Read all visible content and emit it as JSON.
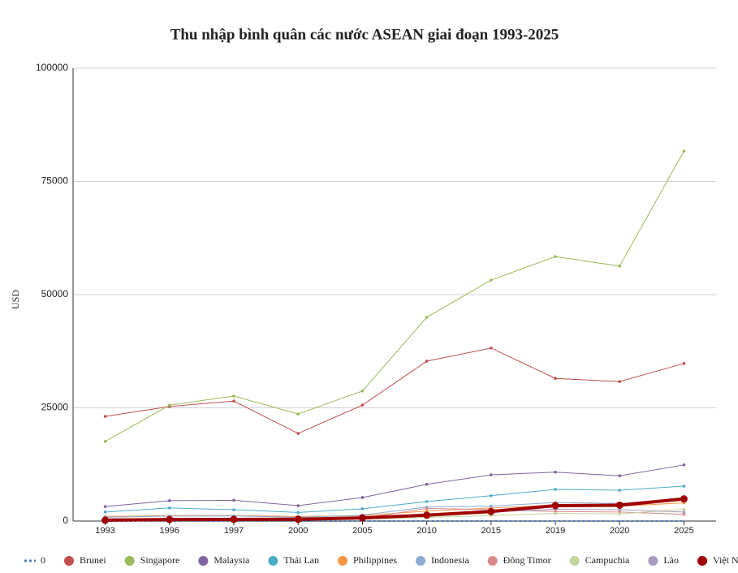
{
  "chart_data": {
    "type": "line",
    "title": "Thu nhập bình quân các nước ASEAN giai đoạn 1993-2025",
    "y_label": "USD",
    "categories": [
      "1993",
      "1996",
      "1997",
      "2000",
      "2005",
      "2010",
      "2015",
      "2019",
      "2020",
      "2025"
    ],
    "ylim": [
      0,
      100000
    ],
    "yticks": [
      0,
      25000,
      50000,
      75000,
      100000
    ],
    "grid": true,
    "legend": "bottom",
    "series": [
      {
        "name": "0",
        "color": "#4f81bd",
        "line_style": "dotted",
        "values": [
          0,
          0,
          0,
          0,
          0,
          0,
          0,
          0,
          0,
          0
        ]
      },
      {
        "name": "Brunei",
        "color": "#c0504d",
        "values": [
          23100,
          25300,
          26500,
          19350,
          25600,
          35300,
          38200,
          31500,
          30800,
          34800
        ]
      },
      {
        "name": "Singapore",
        "color": "#9bbb59",
        "values": [
          17600,
          25600,
          27600,
          23650,
          28700,
          45000,
          53200,
          58400,
          56300,
          81700
        ]
      },
      {
        "name": "Malaysia",
        "color": "#8064a2",
        "values": [
          3200,
          4500,
          4600,
          3400,
          5200,
          8100,
          10200,
          10800,
          10000,
          12400
        ]
      },
      {
        "name": "Thái Lan",
        "color": "#4bacc6",
        "values": [
          2000,
          2900,
          2500,
          1900,
          2700,
          4300,
          5600,
          7000,
          6800,
          7700
        ]
      },
      {
        "name": "Philippines",
        "color": "#f79646",
        "values": [
          1000,
          1200,
          1200,
          1000,
          1200,
          2200,
          2900,
          3500,
          3300,
          4000
        ]
      },
      {
        "name": "Indonesia",
        "color": "#8cacd6",
        "values": [
          850,
          1100,
          1150,
          800,
          1300,
          3100,
          3300,
          4100,
          3900,
          5000
        ]
      },
      {
        "name": "Đông Timor",
        "color": "#d9888a",
        "values": [
          500,
          500,
          500,
          500,
          600,
          2800,
          2500,
          2100,
          2000,
          1500
        ]
      },
      {
        "name": "Campuchia",
        "color": "#c3d69b",
        "values": [
          300,
          300,
          300,
          300,
          450,
          800,
          1200,
          1700,
          1600,
          2600
        ]
      },
      {
        "name": "Lào",
        "color": "#a899c2",
        "values": [
          300,
          350,
          350,
          300,
          500,
          1100,
          2000,
          2600,
          2500,
          2000
        ]
      },
      {
        "name": "Việt Nam",
        "color": "#a00000",
        "line_width": 4,
        "values": [
          200,
          340,
          360,
          400,
          700,
          1300,
          2100,
          3400,
          3500,
          4900
        ]
      }
    ]
  }
}
